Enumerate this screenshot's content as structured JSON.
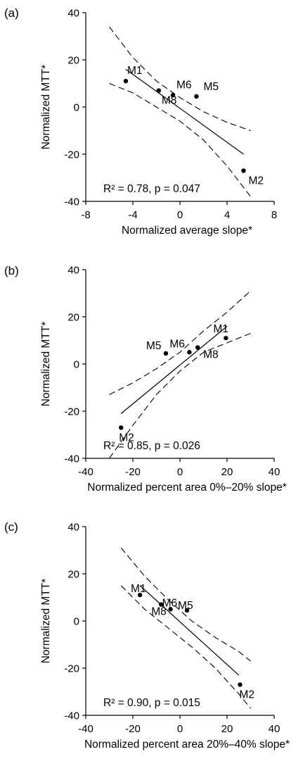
{
  "chart_data": [
    {
      "panel_label": "(a)",
      "type": "scatter",
      "xlabel": "Normalized average slope*",
      "ylabel": "Normalized MTT*",
      "xlim": [
        -8,
        8
      ],
      "ylim": [
        -40,
        40
      ],
      "xticks": [
        -8,
        -4,
        0,
        4,
        8
      ],
      "yticks": [
        -40,
        -20,
        0,
        20,
        40
      ],
      "xtick_labels": [
        "-8",
        "-4",
        "0",
        "4",
        "8"
      ],
      "ytick_labels": [
        "-40",
        "-20",
        "0",
        "20",
        "40"
      ],
      "points": [
        {
          "name": "M1",
          "x": -4.6,
          "y": 11
        },
        {
          "name": "M8",
          "x": -1.8,
          "y": 7
        },
        {
          "name": "M6",
          "x": -0.6,
          "y": 5
        },
        {
          "name": "M5",
          "x": 1.4,
          "y": 4.5
        },
        {
          "name": "M2",
          "x": 5.4,
          "y": -27
        }
      ],
      "fit_line": {
        "x": [
          -4.6,
          5.4
        ],
        "y": [
          16,
          -20
        ]
      },
      "ci_upper": {
        "x": [
          -6,
          -4,
          -2,
          0,
          2,
          4,
          6
        ],
        "y": [
          34,
          21,
          11,
          4,
          -2,
          -6.5,
          -10
        ]
      },
      "ci_lower": {
        "x": [
          -6,
          -4,
          -2,
          0,
          2,
          4,
          6
        ],
        "y": [
          10,
          6,
          0,
          -6,
          -14,
          -25,
          -38
        ]
      },
      "annotation": {
        "r2_label": "R² = 0.78, p = 0.047"
      }
    },
    {
      "panel_label": "(b)",
      "type": "scatter",
      "xlabel": "Normalized percent area 0%–20% slope*",
      "ylabel": "Normalized MTT*",
      "xlim": [
        -40,
        40
      ],
      "ylim": [
        -40,
        40
      ],
      "xticks": [
        -40,
        -20,
        0,
        20,
        40
      ],
      "yticks": [
        -40,
        -20,
        0,
        20,
        40
      ],
      "xtick_labels": [
        "-40",
        "-20",
        "0",
        "20",
        "40"
      ],
      "ytick_labels": [
        "-40",
        "-20",
        "0",
        "20",
        "40"
      ],
      "points": [
        {
          "name": "M5",
          "x": -6,
          "y": 4.5
        },
        {
          "name": "M6",
          "x": 4,
          "y": 5
        },
        {
          "name": "M8",
          "x": 7.5,
          "y": 7
        },
        {
          "name": "M1",
          "x": 19.5,
          "y": 11
        },
        {
          "name": "M2",
          "x": -25,
          "y": -27
        }
      ],
      "fit_line": {
        "x": [
          -25,
          20
        ],
        "y": [
          -21,
          16
        ]
      },
      "ci_upper": {
        "x": [
          -30,
          -20,
          -10,
          0,
          10,
          20,
          30
        ],
        "y": [
          -13,
          -8,
          -2,
          5,
          14,
          22,
          31
        ]
      },
      "ci_lower": {
        "x": [
          -30,
          -20,
          -10,
          0,
          10,
          20,
          30
        ],
        "y": [
          -40,
          -26,
          -13,
          -3,
          5,
          9,
          13
        ]
      },
      "annotation": {
        "r2_label": "R² = 0.85, p = 0.026"
      }
    },
    {
      "panel_label": "(c)",
      "type": "scatter",
      "xlabel": "Normalized percent area 20%–40% slope*",
      "ylabel": "Normalized MTT*",
      "xlim": [
        -40,
        40
      ],
      "ylim": [
        -40,
        40
      ],
      "xticks": [
        -40,
        -20,
        0,
        20,
        40
      ],
      "yticks": [
        -40,
        -20,
        0,
        20,
        40
      ],
      "xtick_labels": [
        "-40",
        "-20",
        "0",
        "20",
        "40"
      ],
      "ytick_labels": [
        "-40",
        "-20",
        "0",
        "20",
        "40"
      ],
      "points": [
        {
          "name": "M1",
          "x": -17,
          "y": 11
        },
        {
          "name": "M8",
          "x": -8,
          "y": 7
        },
        {
          "name": "M6",
          "x": -4,
          "y": 5
        },
        {
          "name": "M5",
          "x": 3,
          "y": 4.5
        },
        {
          "name": "M2",
          "x": 25.5,
          "y": -27
        }
      ],
      "fit_line": {
        "x": [
          -17,
          25
        ],
        "y": [
          15,
          -23
        ]
      },
      "ci_upper": {
        "x": [
          -25,
          -15,
          -5,
          5,
          15,
          25,
          30
        ],
        "y": [
          31,
          19,
          9,
          0,
          -7,
          -13,
          -17
        ]
      },
      "ci_lower": {
        "x": [
          -25,
          -15,
          -5,
          5,
          15,
          25,
          30
        ],
        "y": [
          15,
          5,
          -3,
          -11,
          -20,
          -31,
          -37
        ]
      },
      "annotation": {
        "r2_label": "R² = 0.90, p = 0.015"
      }
    }
  ]
}
